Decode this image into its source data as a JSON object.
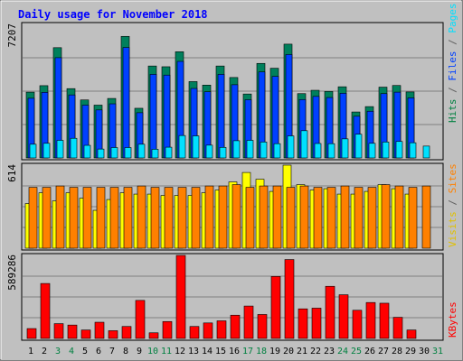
{
  "chart_data": {
    "type": "bar",
    "title": "Daily usage for November 2018",
    "days": [
      "1",
      "2",
      "3",
      "4",
      "5",
      "6",
      "7",
      "8",
      "9",
      "10",
      "11",
      "12",
      "13",
      "14",
      "15",
      "16",
      "17",
      "18",
      "19",
      "20",
      "21",
      "22",
      "23",
      "24",
      "25",
      "26",
      "27",
      "28",
      "29",
      "30",
      "31"
    ],
    "weekend_days": [
      "3",
      "4",
      "10",
      "11",
      "17",
      "18",
      "24",
      "25",
      "31"
    ],
    "panels": [
      {
        "id": "hits",
        "max_label": "7207",
        "ymax": 7207,
        "side_labels": [
          {
            "text": "Hits",
            "color": "#008040"
          },
          {
            "text": " / ",
            "color": "#606060"
          },
          {
            "text": "Files",
            "color": "#0040ff"
          },
          {
            "text": " / ",
            "color": "#606060"
          },
          {
            "text": "Pages",
            "color": "#00e0ff"
          }
        ],
        "series": [
          {
            "name": "Hits",
            "color": "#00805c",
            "values": [
              3550,
              3900,
              5950,
              3740,
              3130,
              2850,
              3210,
              6560,
              2680,
              4960,
              4920,
              5730,
              4120,
              3930,
              4960,
              4340,
              3450,
              5100,
              4840,
              6140,
              3470,
              3650,
              3590,
              3840,
              2480,
              2770,
              3820,
              3910,
              3560,
              0,
              0
            ]
          },
          {
            "name": "Files",
            "color": "#0040ff",
            "values": [
              3220,
              3540,
              5410,
              3400,
              2850,
              2590,
              2920,
              5960,
              2440,
              4510,
              4470,
              5210,
              3750,
              3570,
              4510,
              3950,
              3140,
              4640,
              4400,
              5580,
              3150,
              3320,
              3260,
              3490,
              2250,
              2520,
              3470,
              3550,
              3240,
              0,
              0
            ]
          },
          {
            "name": "Pages",
            "color": "#00e0ff",
            "values": [
              740,
              790,
              950,
              1060,
              680,
              480,
              560,
              560,
              740,
              470,
              580,
              1210,
              1190,
              690,
              570,
              930,
              950,
              860,
              770,
              1190,
              1470,
              780,
              770,
              1030,
              1280,
              790,
              860,
              890,
              820,
              640,
              0
            ]
          }
        ]
      },
      {
        "id": "visits",
        "max_label": "614",
        "ymax": 614,
        "side_labels": [
          {
            "text": "Visits",
            "color": "#e0c000"
          },
          {
            "text": " / ",
            "color": "#606060"
          },
          {
            "text": "Sites",
            "color": "#ff8000"
          }
        ],
        "series": [
          {
            "name": "Visits",
            "color": "#ffff00",
            "values": [
              330,
              410,
              350,
              410,
              370,
              280,
              360,
              410,
              400,
              400,
              390,
              390,
              390,
              410,
              430,
              490,
              560,
              510,
              420,
              614,
              470,
              430,
              440,
              400,
              400,
              420,
              470,
              440,
              400,
              0,
              0
            ]
          },
          {
            "name": "Sites",
            "color": "#ff8000",
            "values": [
              450,
              450,
              460,
              450,
              450,
              450,
              450,
              450,
              460,
              450,
              450,
              450,
              450,
              460,
              460,
              470,
              450,
              460,
              460,
              450,
              460,
              450,
              450,
              460,
              450,
              450,
              470,
              460,
              450,
              460,
              0
            ]
          }
        ]
      },
      {
        "id": "kbytes",
        "max_label": "589286",
        "ymax": 589286,
        "side_labels": [
          {
            "text": "KBytes",
            "color": "#ff0000"
          }
        ],
        "series": [
          {
            "name": "KBytes",
            "color": "#ff0000",
            "values": [
              70000,
              390000,
              105000,
              95000,
              60000,
              115000,
              55000,
              85000,
              270000,
              40000,
              120000,
              589286,
              85000,
              110000,
              125000,
              165000,
              230000,
              170000,
              440000,
              560000,
              210000,
              215000,
              370000,
              310000,
              200000,
              255000,
              250000,
              150000,
              60000,
              0,
              0
            ]
          }
        ]
      }
    ]
  }
}
